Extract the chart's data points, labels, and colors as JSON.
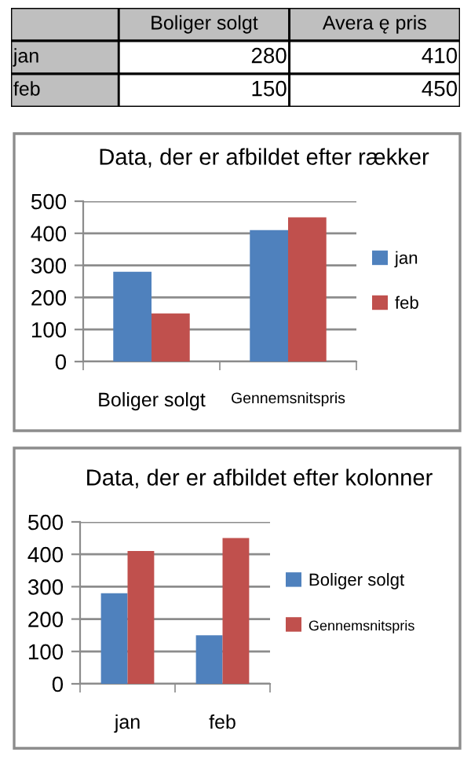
{
  "chart_data": [
    {
      "type": "other",
      "categories": [
        "jan",
        "feb"
      ],
      "series": [
        {
          "name": "Boliger solgt",
          "values": [
            280,
            150
          ]
        },
        {
          "name": "Avera ę pris",
          "values": [
            410,
            450
          ]
        }
      ],
      "data_labels": true
    },
    {
      "type": "bar",
      "title": "Data, der er afbildet efter rækker",
      "categories": [
        "Boliger solgt",
        "Gennemsnitspris"
      ],
      "series": [
        {
          "name": "jan",
          "color": "#4f81bd",
          "values": [
            280,
            410
          ]
        },
        {
          "name": "feb",
          "color": "#c0504d",
          "values": [
            150,
            450
          ]
        }
      ],
      "ylim": [
        0,
        500
      ],
      "yticks": [
        0,
        100,
        200,
        300,
        400,
        500
      ],
      "grid": "y",
      "legend": "right"
    },
    {
      "type": "bar",
      "title": "Data, der er afbildet efter kolonner",
      "categories": [
        "jan",
        "feb"
      ],
      "series": [
        {
          "name": "Boliger solgt",
          "color": "#4f81bd",
          "values": [
            280,
            150
          ]
        },
        {
          "name": "Gennemsnitspris",
          "color": "#c0504d",
          "values": [
            410,
            450
          ]
        }
      ],
      "ylim": [
        0,
        500
      ],
      "yticks": [
        0,
        100,
        200,
        300,
        400,
        500
      ],
      "grid": "y",
      "legend": "right"
    }
  ]
}
